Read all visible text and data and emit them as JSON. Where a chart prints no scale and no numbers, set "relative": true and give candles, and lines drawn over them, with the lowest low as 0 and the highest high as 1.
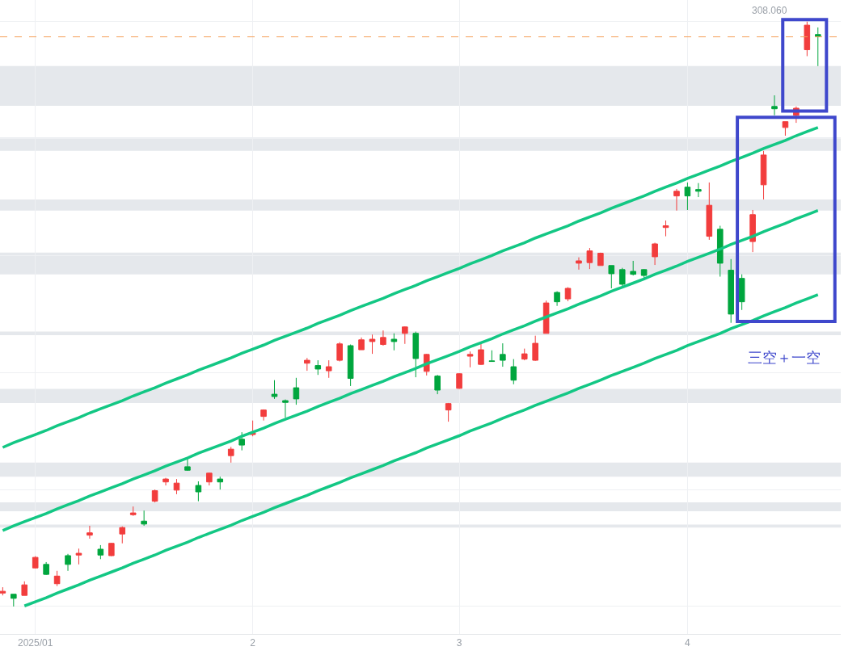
{
  "chart_data": {
    "type": "candlestick",
    "relative": true,
    "categories": [
      null,
      null,
      null,
      "2025/01",
      null,
      null,
      null,
      null,
      null,
      null,
      null,
      null,
      null,
      null,
      null,
      null,
      null,
      null,
      null,
      null,
      null,
      null,
      null,
      "2",
      null,
      null,
      null,
      null,
      null,
      null,
      null,
      null,
      null,
      null,
      null,
      null,
      null,
      null,
      null,
      null,
      null,
      null,
      "3",
      null,
      null,
      null,
      null,
      null,
      null,
      null,
      null,
      null,
      null,
      null,
      null,
      null,
      null,
      null,
      null,
      null,
      null,
      null,
      null,
      "4",
      null,
      null,
      null,
      null,
      null,
      null,
      null,
      null,
      null,
      null,
      null,
      null
    ],
    "ohlc": [
      [
        0.023,
        0.033,
        0.019,
        0.026
      ],
      [
        0.021,
        0.021,
        0.0,
        0.014
      ],
      [
        0.019,
        0.043,
        0.019,
        0.037
      ],
      [
        0.066,
        0.086,
        0.065,
        0.084
      ],
      [
        0.072,
        0.076,
        0.054,
        0.055
      ],
      [
        0.039,
        0.061,
        0.035,
        0.052
      ],
      [
        0.087,
        0.09,
        0.061,
        0.072
      ],
      [
        0.088,
        0.099,
        0.072,
        0.091
      ],
      [
        0.122,
        0.138,
        0.116,
        0.126
      ],
      [
        0.098,
        0.105,
        0.081,
        0.088
      ],
      [
        0.087,
        0.109,
        0.086,
        0.108
      ],
      [
        0.124,
        0.137,
        0.108,
        0.135
      ],
      [
        0.157,
        0.171,
        0.155,
        0.16
      ],
      [
        0.146,
        0.164,
        0.138,
        0.141
      ],
      [
        0.18,
        0.2,
        0.178,
        0.198
      ],
      [
        0.213,
        0.22,
        0.207,
        0.218
      ],
      [
        0.199,
        0.218,
        0.192,
        0.211
      ],
      [
        0.239,
        0.254,
        0.232,
        0.233
      ],
      [
        0.207,
        0.214,
        0.18,
        0.196
      ],
      [
        0.213,
        0.229,
        0.207,
        0.228
      ],
      [
        0.218,
        0.222,
        0.2,
        0.213
      ],
      [
        0.258,
        0.273,
        0.246,
        0.269
      ],
      [
        0.286,
        0.298,
        0.267,
        0.276
      ],
      [
        0.294,
        0.318,
        0.291,
        0.297
      ],
      [
        0.325,
        0.337,
        0.318,
        0.336
      ],
      [
        0.363,
        0.387,
        0.355,
        0.359
      ],
      [
        0.352,
        0.354,
        0.323,
        0.349
      ],
      [
        0.374,
        0.391,
        0.345,
        0.355
      ],
      [
        0.416,
        0.425,
        0.403,
        0.421
      ],
      [
        0.412,
        0.421,
        0.396,
        0.406
      ],
      [
        0.403,
        0.421,
        0.391,
        0.41
      ],
      [
        0.421,
        0.452,
        0.419,
        0.449
      ],
      [
        0.446,
        0.448,
        0.377,
        0.39
      ],
      [
        0.439,
        0.46,
        0.439,
        0.456
      ],
      [
        0.453,
        0.465,
        0.432,
        0.457
      ],
      [
        0.448,
        0.472,
        0.446,
        0.46
      ],
      [
        0.457,
        0.467,
        0.438,
        0.453
      ],
      [
        0.467,
        0.479,
        0.449,
        0.478
      ],
      [
        0.467,
        0.47,
        0.392,
        0.424
      ],
      [
        0.402,
        0.432,
        0.395,
        0.431
      ],
      [
        0.394,
        0.396,
        0.363,
        0.37
      ],
      [
        0.336,
        0.348,
        0.316,
        0.347
      ],
      [
        0.373,
        0.399,
        0.372,
        0.398
      ],
      [
        0.428,
        0.436,
        0.409,
        0.431
      ],
      [
        0.414,
        0.45,
        0.413,
        0.439
      ],
      [
        0.42,
        0.438,
        0.419,
        0.419
      ],
      [
        0.431,
        0.45,
        0.41,
        0.421
      ],
      [
        0.41,
        0.423,
        0.38,
        0.387
      ],
      [
        0.423,
        0.441,
        0.421,
        0.432
      ],
      [
        0.421,
        0.463,
        0.42,
        0.45
      ],
      [
        0.467,
        0.523,
        0.467,
        0.519
      ],
      [
        0.537,
        0.539,
        0.514,
        0.521
      ],
      [
        0.526,
        0.546,
        0.522,
        0.544
      ],
      [
        0.587,
        0.597,
        0.576,
        0.591
      ],
      [
        0.588,
        0.613,
        0.577,
        0.608
      ],
      [
        0.583,
        0.605,
        0.583,
        0.604
      ],
      [
        0.583,
        0.583,
        0.544,
        0.569
      ],
      [
        0.576,
        0.579,
        0.546,
        0.551
      ],
      [
        0.573,
        0.591,
        0.566,
        0.568
      ],
      [
        0.576,
        0.577,
        0.558,
        0.566
      ],
      [
        0.598,
        0.622,
        0.584,
        0.62
      ],
      [
        0.648,
        0.66,
        0.633,
        0.651
      ],
      [
        0.702,
        0.714,
        0.677,
        0.71
      ],
      [
        0.717,
        0.725,
        0.678,
        0.702
      ],
      [
        0.713,
        0.724,
        0.7,
        0.71
      ],
      [
        0.633,
        0.725,
        0.627,
        0.686
      ],
      [
        0.645,
        0.651,
        0.564,
        0.587
      ],
      [
        0.575,
        0.594,
        0.485,
        0.5
      ],
      [
        0.561,
        0.568,
        0.507,
        0.521
      ],
      [
        0.624,
        0.678,
        0.606,
        0.67
      ],
      [
        0.721,
        0.779,
        0.696,
        0.772
      ],
      [
        0.855,
        0.874,
        0.84,
        0.851
      ],
      [
        0.819,
        0.829,
        0.805,
        0.829
      ],
      [
        0.84,
        0.855,
        0.827,
        0.852
      ],
      [
        0.952,
        1.0,
        0.941,
        0.994
      ],
      [
        0.978,
        0.99,
        0.924,
        0.975
      ]
    ],
    "colors": [
      "#f23d3d",
      "#00a63e",
      "#f23d3d",
      "#f23d3d",
      "#00a63e",
      "#f23d3d",
      "#00a63e",
      "#f23d3d",
      "#f23d3d",
      "#00a63e",
      "#f23d3d",
      "#f23d3d",
      "#f23d3d",
      "#00a63e",
      "#f23d3d",
      "#f23d3d",
      "#f23d3d",
      "#00a63e",
      "#00a63e",
      "#f23d3d",
      "#00a63e",
      "#f23d3d",
      "#00a63e",
      "#f23d3d",
      "#f23d3d",
      "#00a63e",
      "#00a63e",
      "#00a63e",
      "#f23d3d",
      "#00a63e",
      "#f23d3d",
      "#f23d3d",
      "#00a63e",
      "#f23d3d",
      "#f23d3d",
      "#f23d3d",
      "#00a63e",
      "#f23d3d",
      "#00a63e",
      "#f23d3d",
      "#00a63e",
      "#f23d3d",
      "#f23d3d",
      "#f23d3d",
      "#f23d3d",
      "#00a63e",
      "#00a63e",
      "#00a63e",
      "#f23d3d",
      "#f23d3d",
      "#f23d3d",
      "#00a63e",
      "#f23d3d",
      "#f23d3d",
      "#f23d3d",
      "#f23d3d",
      "#00a63e",
      "#00a63e",
      "#00a63e",
      "#00a63e",
      "#f23d3d",
      "#f23d3d",
      "#f23d3d",
      "#00a63e",
      "#00a63e",
      "#f23d3d",
      "#00a63e",
      "#00a63e",
      "#00a63e",
      "#f23d3d",
      "#f23d3d",
      "#00a63e",
      "#f23d3d",
      "#f23d3d",
      "#f23d3d",
      "#00a63e"
    ],
    "series": [
      {
        "type": "line",
        "color": "#13c784",
        "values": [
          0.272,
          0.28,
          0.287,
          0.294,
          0.301,
          0.309,
          0.316,
          0.323,
          0.331,
          0.338,
          0.345,
          0.352,
          0.36,
          0.367,
          0.374,
          0.382,
          0.389,
          0.396,
          0.404,
          0.411,
          0.418,
          0.425,
          0.433,
          0.44,
          0.447,
          0.455,
          0.462,
          0.469,
          0.476,
          0.484,
          0.491,
          0.498,
          0.506,
          0.513,
          0.52,
          0.527,
          0.535,
          0.542,
          0.549,
          0.557,
          0.564,
          0.571,
          0.578,
          0.586,
          0.593,
          0.6,
          0.608,
          0.615,
          0.622,
          0.63,
          0.637,
          0.644,
          0.651,
          0.659,
          0.666,
          0.673,
          0.681,
          0.688,
          0.695,
          0.702,
          0.71,
          0.717,
          0.724,
          0.732,
          0.739,
          0.746,
          0.753,
          0.761,
          0.768,
          0.775,
          0.783,
          0.79,
          0.797,
          0.805,
          0.812,
          0.819
        ]
      },
      {
        "type": "line",
        "color": "#13c784",
        "values": [
          0.13,
          0.138,
          0.145,
          0.152,
          0.159,
          0.167,
          0.174,
          0.181,
          0.189,
          0.196,
          0.203,
          0.21,
          0.218,
          0.225,
          0.232,
          0.24,
          0.247,
          0.254,
          0.262,
          0.269,
          0.276,
          0.283,
          0.291,
          0.298,
          0.305,
          0.313,
          0.32,
          0.327,
          0.334,
          0.342,
          0.349,
          0.356,
          0.364,
          0.371,
          0.378,
          0.385,
          0.393,
          0.4,
          0.407,
          0.415,
          0.422,
          0.429,
          0.436,
          0.444,
          0.451,
          0.458,
          0.466,
          0.473,
          0.48,
          0.488,
          0.495,
          0.502,
          0.509,
          0.517,
          0.524,
          0.531,
          0.539,
          0.546,
          0.553,
          0.56,
          0.568,
          0.575,
          0.582,
          0.59,
          0.597,
          0.604,
          0.611,
          0.619,
          0.626,
          0.633,
          0.641,
          0.648,
          0.655,
          0.663,
          0.67,
          0.677
        ]
      },
      {
        "type": "line",
        "color": "#13c784",
        "values": [
          null,
          null,
          0.001,
          0.008,
          0.015,
          0.023,
          0.03,
          0.037,
          0.045,
          0.052,
          0.059,
          0.066,
          0.074,
          0.081,
          0.088,
          0.096,
          0.103,
          0.11,
          0.118,
          0.125,
          0.132,
          0.139,
          0.147,
          0.154,
          0.161,
          0.169,
          0.176,
          0.183,
          0.19,
          0.198,
          0.205,
          0.212,
          0.22,
          0.227,
          0.234,
          0.241,
          0.249,
          0.256,
          0.263,
          0.271,
          0.278,
          0.285,
          0.292,
          0.3,
          0.307,
          0.314,
          0.322,
          0.329,
          0.336,
          0.344,
          0.351,
          0.358,
          0.365,
          0.373,
          0.38,
          0.387,
          0.395,
          0.402,
          0.409,
          0.416,
          0.424,
          0.431,
          0.438,
          0.446,
          0.453,
          0.46,
          0.467,
          0.475,
          0.482,
          0.489,
          0.497,
          0.504,
          0.511,
          0.519,
          0.526,
          0.533
        ]
      }
    ],
    "bands": [
      {
        "axis": "y",
        "from": 0.135,
        "to": 0.14,
        "color": "#e5e8ec"
      },
      {
        "axis": "y",
        "from": 0.163,
        "to": 0.178,
        "color": "#e5e8ec"
      },
      {
        "axis": "y",
        "from": 0.222,
        "to": 0.246,
        "color": "#e5e8ec"
      },
      {
        "axis": "y",
        "from": 0.348,
        "to": 0.372,
        "color": "#e5e8ec"
      },
      {
        "axis": "y",
        "from": 0.464,
        "to": 0.47,
        "color": "#e5e8ec"
      },
      {
        "axis": "y",
        "from": 0.568,
        "to": 0.605,
        "color": "#e5e8ec"
      },
      {
        "axis": "y",
        "from": 0.677,
        "to": 0.696,
        "color": "#e5e8ec"
      },
      {
        "axis": "y",
        "from": 0.779,
        "to": 0.802,
        "color": "#e5e8ec"
      },
      {
        "axis": "y",
        "from": 0.856,
        "to": 0.924,
        "color": "#e5e8ec"
      }
    ],
    "ref_lines": [
      {
        "axis": "y",
        "value": 0.974,
        "color": "#f5a05a",
        "line_style": "dashed"
      }
    ],
    "annotations": [
      "三空＋一空",
      "308.060"
    ],
    "grid": true
  }
}
